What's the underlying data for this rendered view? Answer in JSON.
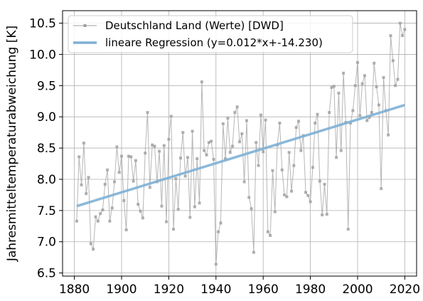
{
  "chart_data": {
    "type": "line",
    "ylabel": "Jahresmitteltemperaturabweichung [K]",
    "xlabel": "",
    "xlim": [
      1875,
      2025
    ],
    "ylim": [
      6.45,
      10.7
    ],
    "xticks": [
      1880,
      1900,
      1920,
      1940,
      1960,
      1980,
      2000,
      2020
    ],
    "xtick_labels": [
      "1880",
      "1900",
      "1920",
      "1940",
      "1960",
      "1980",
      "2000",
      "2020"
    ],
    "yticks": [
      6.5,
      7.0,
      7.5,
      8.0,
      8.5,
      9.0,
      9.5,
      10.0,
      10.5
    ],
    "ytick_labels": [
      "6.5",
      "7.0",
      "7.5",
      "8.0",
      "8.5",
      "9.0",
      "9.5",
      "10.0",
      "10.5"
    ],
    "grid": true,
    "legend_position": "top-left",
    "series": [
      {
        "name": "Deutschland Land (Werte) [DWD]",
        "kind": "line-markers",
        "color": "#9e9e9e",
        "x": [
          1881,
          1882,
          1883,
          1884,
          1885,
          1886,
          1887,
          1888,
          1889,
          1890,
          1891,
          1892,
          1893,
          1894,
          1895,
          1896,
          1897,
          1898,
          1899,
          1900,
          1901,
          1902,
          1903,
          1904,
          1905,
          1906,
          1907,
          1908,
          1909,
          1910,
          1911,
          1912,
          1913,
          1914,
          1915,
          1916,
          1917,
          1918,
          1919,
          1920,
          1921,
          1922,
          1923,
          1924,
          1925,
          1926,
          1927,
          1928,
          1929,
          1930,
          1931,
          1932,
          1933,
          1934,
          1935,
          1936,
          1937,
          1938,
          1939,
          1940,
          1941,
          1942,
          1943,
          1944,
          1945,
          1946,
          1947,
          1948,
          1949,
          1950,
          1951,
          1952,
          1953,
          1954,
          1955,
          1956,
          1957,
          1958,
          1959,
          1960,
          1961,
          1962,
          1963,
          1964,
          1965,
          1966,
          1967,
          1968,
          1969,
          1970,
          1971,
          1972,
          1973,
          1974,
          1975,
          1976,
          1977,
          1978,
          1979,
          1980,
          1981,
          1982,
          1983,
          1984,
          1985,
          1986,
          1987,
          1988,
          1989,
          1990,
          1991,
          1992,
          1993,
          1994,
          1995,
          1996,
          1997,
          1998,
          1999,
          2000,
          2001,
          2002,
          2003,
          2004,
          2005,
          2006,
          2007,
          2008,
          2009,
          2010,
          2011,
          2012,
          2013,
          2014,
          2015,
          2016,
          2017,
          2018,
          2019,
          2020
        ],
        "y": [
          7.33,
          8.36,
          7.91,
          8.58,
          7.77,
          8.03,
          6.97,
          6.88,
          7.4,
          7.33,
          7.45,
          7.51,
          7.92,
          8.15,
          7.33,
          7.54,
          7.96,
          8.52,
          8.11,
          8.37,
          7.66,
          7.19,
          8.37,
          8.36,
          7.97,
          8.3,
          7.6,
          7.49,
          7.38,
          8.42,
          9.07,
          7.87,
          8.55,
          8.53,
          7.96,
          8.45,
          7.57,
          8.54,
          7.32,
          8.64,
          9.01,
          7.2,
          8.01,
          7.52,
          8.34,
          8.75,
          8.05,
          8.35,
          7.39,
          8.77,
          7.56,
          8.33,
          7.62,
          9.56,
          8.46,
          8.39,
          8.59,
          8.61,
          8.32,
          6.64,
          7.16,
          7.3,
          8.89,
          8.33,
          8.98,
          8.43,
          8.53,
          9.07,
          9.16,
          8.6,
          8.73,
          7.96,
          8.94,
          7.71,
          7.53,
          6.83,
          8.59,
          8.22,
          9.03,
          8.44,
          8.95,
          7.16,
          7.1,
          8.14,
          7.48,
          8.55,
          8.9,
          8.15,
          7.75,
          7.72,
          8.43,
          7.81,
          8.22,
          8.83,
          8.93,
          8.46,
          8.7,
          7.79,
          7.74,
          7.64,
          8.19,
          8.9,
          9.04,
          7.97,
          7.43,
          7.92,
          7.44,
          9.07,
          9.47,
          9.49,
          8.35,
          9.38,
          8.46,
          9.7,
          8.91,
          7.2,
          8.9,
          9.1,
          9.5,
          9.87,
          9.02,
          9.53,
          9.66,
          8.94,
          8.99,
          9.07,
          9.86,
          9.48,
          9.19,
          7.85,
          9.63,
          9.1,
          8.71,
          10.3,
          9.9,
          9.5,
          9.6,
          10.5,
          10.3,
          10.4
        ]
      },
      {
        "name": "lineare Regression (y=0.012*x+-14.230)",
        "kind": "line",
        "color": "#7eb0d5",
        "x": [
          1881,
          2020
        ],
        "y": [
          7.57,
          9.19
        ]
      }
    ]
  }
}
